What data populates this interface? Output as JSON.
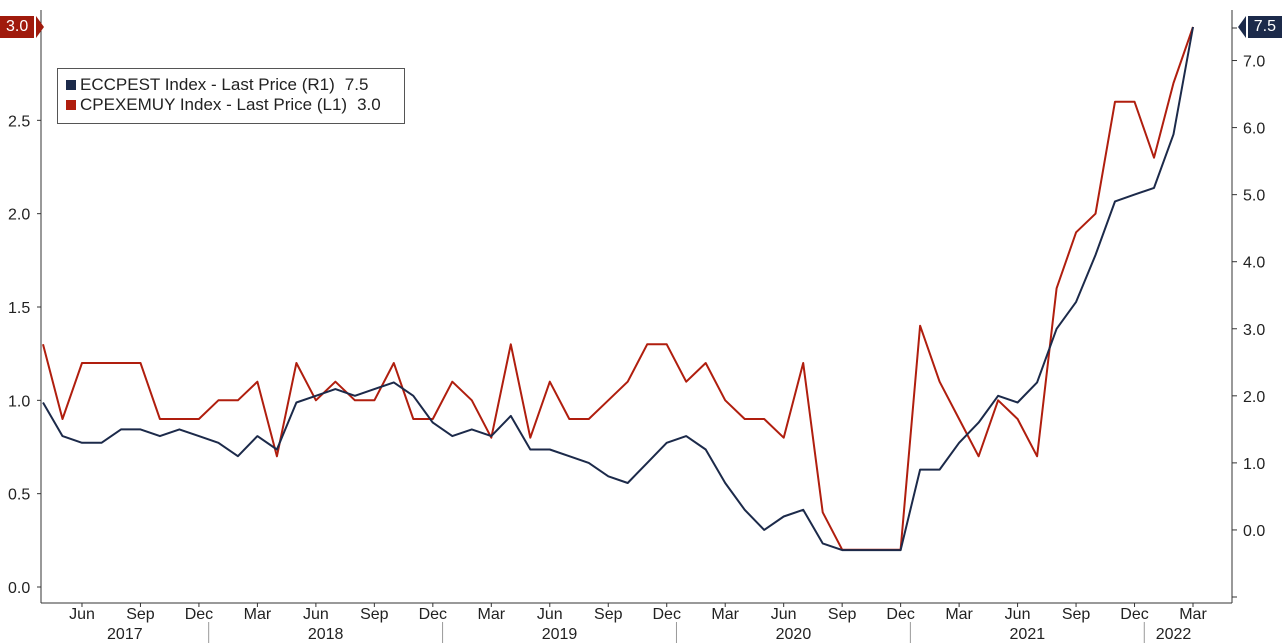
{
  "chart_data": {
    "type": "line",
    "title": "",
    "x": [
      "2017-04",
      "2017-05",
      "2017-06",
      "2017-07",
      "2017-08",
      "2017-09",
      "2017-10",
      "2017-11",
      "2017-12",
      "2018-01",
      "2018-02",
      "2018-03",
      "2018-04",
      "2018-05",
      "2018-06",
      "2018-07",
      "2018-08",
      "2018-09",
      "2018-10",
      "2018-11",
      "2018-12",
      "2019-01",
      "2019-02",
      "2019-03",
      "2019-04",
      "2019-05",
      "2019-06",
      "2019-07",
      "2019-08",
      "2019-09",
      "2019-10",
      "2019-11",
      "2019-12",
      "2020-01",
      "2020-02",
      "2020-03",
      "2020-04",
      "2020-05",
      "2020-06",
      "2020-07",
      "2020-08",
      "2020-09",
      "2020-10",
      "2020-11",
      "2020-12",
      "2021-01",
      "2021-02",
      "2021-03",
      "2021-04",
      "2021-05",
      "2021-06",
      "2021-07",
      "2021-08",
      "2021-09",
      "2021-10",
      "2021-11",
      "2021-12",
      "2022-01",
      "2022-02",
      "2022-03"
    ],
    "series": [
      {
        "name": "ECCPEST Index - Last Price (R1)",
        "axis": "right",
        "color": "#1c2a4a",
        "last_value": "7.5",
        "values": [
          1.9,
          1.4,
          1.3,
          1.3,
          1.5,
          1.5,
          1.4,
          1.5,
          1.4,
          1.3,
          1.1,
          1.4,
          1.2,
          1.9,
          2.0,
          2.1,
          2.0,
          2.1,
          2.2,
          2.0,
          1.6,
          1.4,
          1.5,
          1.4,
          1.7,
          1.2,
          1.2,
          1.1,
          1.0,
          0.8,
          0.7,
          1.0,
          1.3,
          1.4,
          1.2,
          0.7,
          0.3,
          0.0,
          0.2,
          0.3,
          -0.2,
          -0.3,
          -0.3,
          -0.3,
          -0.3,
          0.9,
          0.9,
          1.3,
          1.6,
          2.0,
          1.9,
          2.2,
          3.0,
          3.4,
          4.1,
          4.9,
          5.0,
          5.1,
          5.9,
          7.5
        ]
      },
      {
        "name": "CPEXEMUY Index - Last Price (L1)",
        "axis": "left",
        "color": "#b01e0e",
        "last_value": "3.0",
        "values": [
          1.3,
          0.9,
          1.2,
          1.2,
          1.2,
          1.2,
          0.9,
          0.9,
          0.9,
          1.0,
          1.0,
          1.1,
          0.7,
          1.2,
          1.0,
          1.1,
          1.0,
          1.0,
          1.2,
          0.9,
          0.9,
          1.1,
          1.0,
          0.8,
          1.3,
          0.8,
          1.1,
          0.9,
          0.9,
          1.0,
          1.1,
          1.3,
          1.3,
          1.1,
          1.2,
          1.0,
          0.9,
          0.9,
          0.8,
          1.2,
          0.4,
          0.2,
          0.2,
          0.2,
          0.2,
          1.4,
          1.1,
          0.9,
          0.7,
          1.0,
          0.9,
          0.7,
          1.6,
          1.9,
          2.0,
          2.6,
          2.6,
          2.3,
          2.7,
          3.0
        ]
      }
    ],
    "left_axis": {
      "ylim": [
        0.0,
        3.0
      ],
      "ticks": [
        "0.0",
        "0.5",
        "1.0",
        "1.5",
        "2.0",
        "2.5"
      ],
      "tick_values": [
        0.0,
        0.5,
        1.0,
        1.5,
        2.0,
        2.5
      ]
    },
    "right_axis": {
      "ylim": [
        -1.0,
        7.5
      ],
      "ticks": [
        "0.0",
        "1.0",
        "2.0",
        "3.0",
        "4.0",
        "5.0",
        "6.0",
        "7.0"
      ],
      "tick_values": [
        0.0,
        1.0,
        2.0,
        3.0,
        4.0,
        5.0,
        6.0,
        7.0
      ]
    },
    "x_month_ticks": [
      {
        "label": "Jun",
        "index": 2
      },
      {
        "label": "Sep",
        "index": 5
      },
      {
        "label": "Dec",
        "index": 8
      },
      {
        "label": "Mar",
        "index": 11
      },
      {
        "label": "Jun",
        "index": 14
      },
      {
        "label": "Sep",
        "index": 17
      },
      {
        "label": "Dec",
        "index": 20
      },
      {
        "label": "Mar",
        "index": 23
      },
      {
        "label": "Jun",
        "index": 26
      },
      {
        "label": "Sep",
        "index": 29
      },
      {
        "label": "Dec",
        "index": 32
      },
      {
        "label": "Mar",
        "index": 35
      },
      {
        "label": "Jun",
        "index": 38
      },
      {
        "label": "Sep",
        "index": 41
      },
      {
        "label": "Dec",
        "index": 44
      },
      {
        "label": "Mar",
        "index": 47
      },
      {
        "label": "Jun",
        "index": 50
      },
      {
        "label": "Sep",
        "index": 53
      },
      {
        "label": "Dec",
        "index": 56
      },
      {
        "label": "Mar",
        "index": 59
      }
    ],
    "x_year_labels": [
      {
        "label": "2017",
        "start": -0.5,
        "end": 8.5
      },
      {
        "label": "2018",
        "start": 8.5,
        "end": 20.5
      },
      {
        "label": "2019",
        "start": 20.5,
        "end": 32.5
      },
      {
        "label": "2020",
        "start": 32.5,
        "end": 44.5
      },
      {
        "label": "2021",
        "start": 44.5,
        "end": 56.5
      },
      {
        "label": "2022",
        "start": 56.5,
        "end": 59.5
      }
    ],
    "legend": "top-left",
    "grid": false,
    "xlabel": "",
    "ylabel": ""
  }
}
